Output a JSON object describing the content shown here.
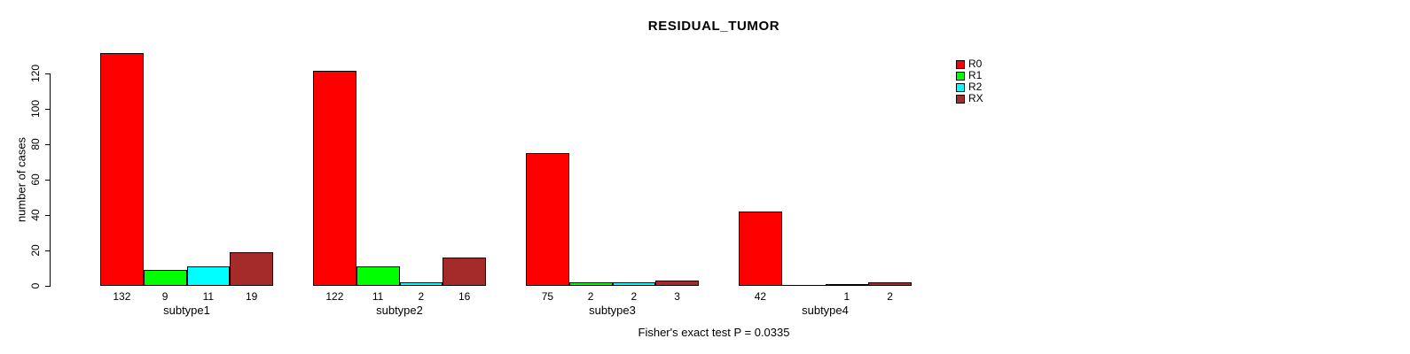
{
  "chart_data": {
    "type": "bar",
    "title": "RESIDUAL_TUMOR",
    "ylabel": "number of cases",
    "xlabel": "",
    "note": "Fisher's exact test P = 0.0335",
    "categories": [
      "subtype1",
      "subtype2",
      "subtype3",
      "subtype4"
    ],
    "series": [
      {
        "name": "R0",
        "color": "#FF0000",
        "values": [
          132,
          122,
          75,
          42
        ]
      },
      {
        "name": "R1",
        "color": "#00FF00",
        "values": [
          9,
          11,
          2,
          0
        ]
      },
      {
        "name": "R2",
        "color": "#00FFFF",
        "values": [
          11,
          2,
          2,
          1
        ]
      },
      {
        "name": "RX",
        "color": "#A52A2A",
        "values": [
          19,
          16,
          3,
          2
        ]
      }
    ],
    "bar_value_labels": [
      [
        "132",
        "9",
        "11",
        "19"
      ],
      [
        "122",
        "11",
        "2",
        "16"
      ],
      [
        "75",
        "2",
        "2",
        "3"
      ],
      [
        "42",
        "",
        "1",
        "2"
      ]
    ],
    "yticks": [
      0,
      20,
      40,
      60,
      80,
      100,
      120
    ],
    "ylim": [
      0,
      132
    ],
    "grid": false,
    "legend_position": "top-right",
    "background_color": "#FFFFFF",
    "axis_color": "#000000"
  }
}
